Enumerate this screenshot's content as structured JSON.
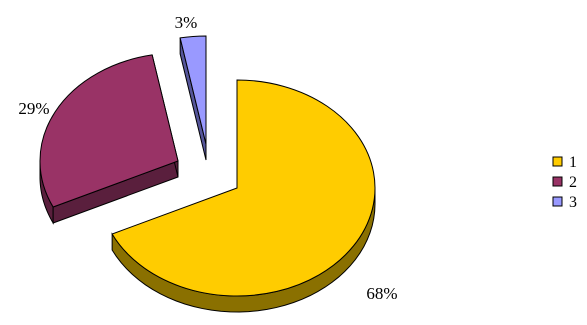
{
  "chart_data": {
    "type": "pie",
    "style": "3d-exploded",
    "labels": [
      "1",
      "2",
      "3"
    ],
    "values": [
      68,
      29,
      3
    ],
    "data_labels": [
      "68%",
      "29%",
      "3%"
    ],
    "colors": [
      "#FFCC00",
      "#993366",
      "#9999FF"
    ],
    "side_colors": [
      "#8A7000",
      "#5A1F3D",
      "#55559A"
    ],
    "legend": {
      "position": "right",
      "entries": [
        "1",
        "2",
        "3"
      ]
    }
  }
}
